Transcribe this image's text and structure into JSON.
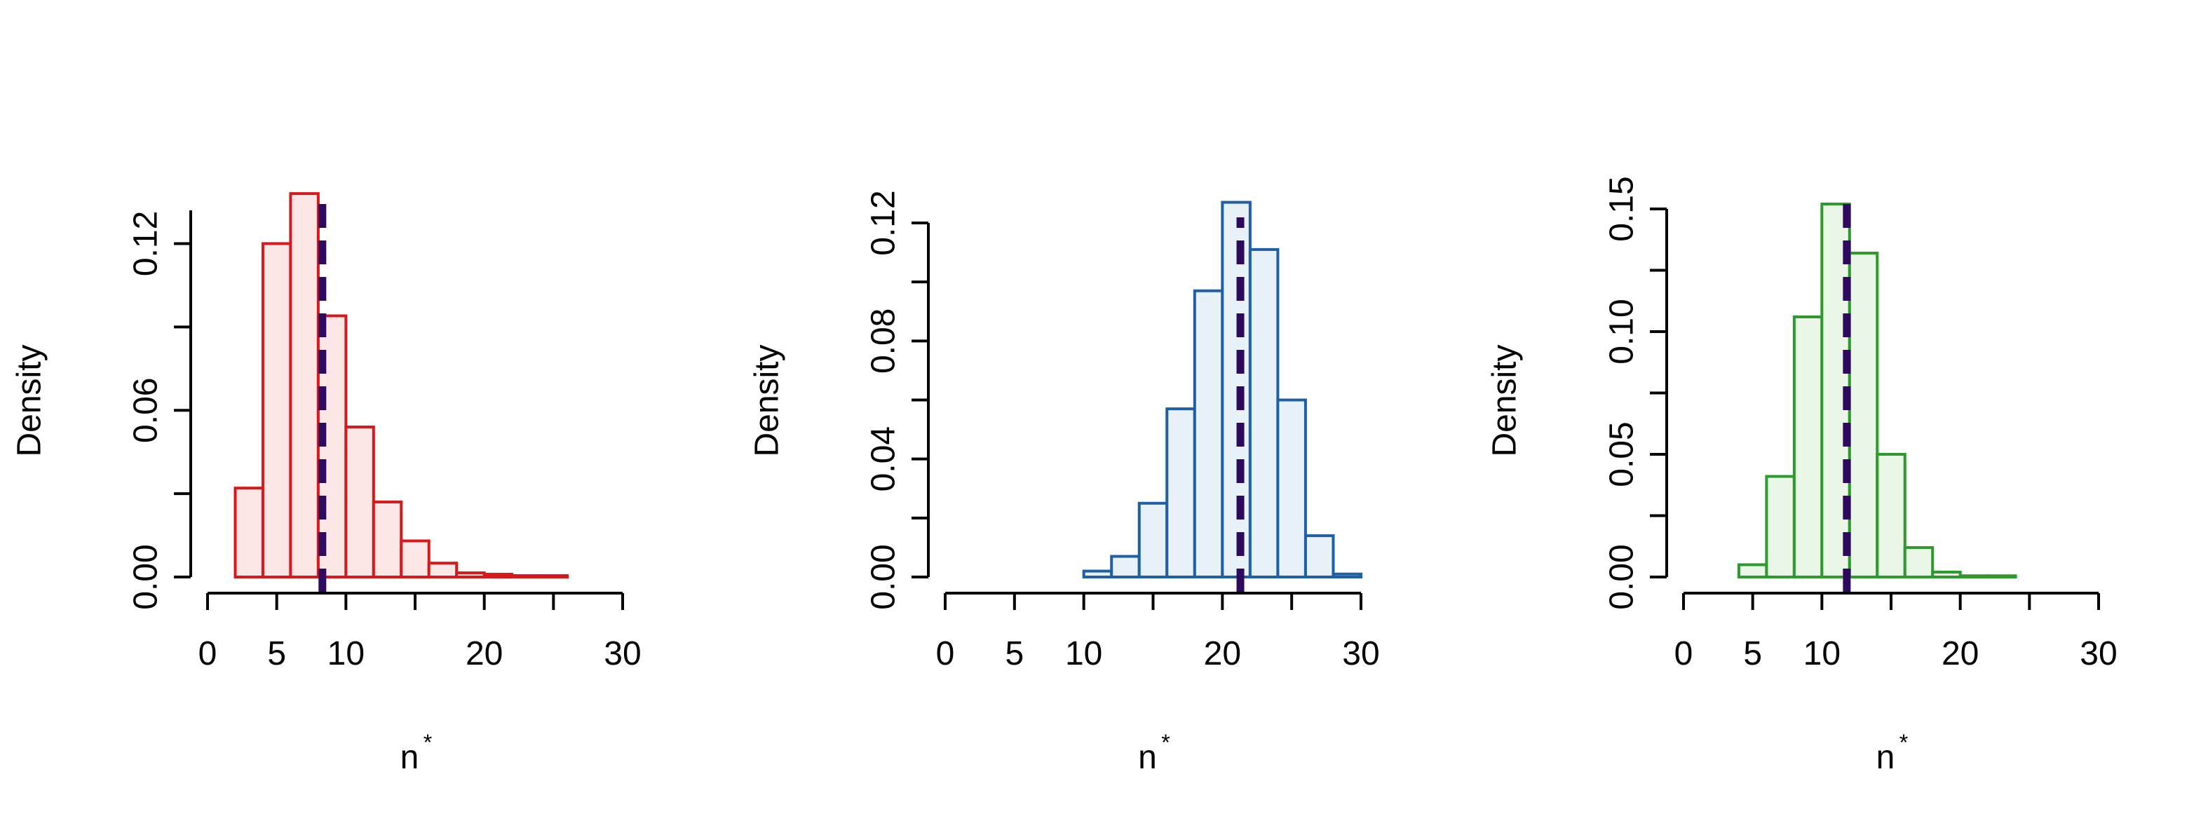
{
  "chart_data": [
    {
      "type": "bar",
      "xlabel": "n",
      "xlabel_superscript": "*",
      "ylabel": "Density",
      "xlim": [
        0,
        30
      ],
      "ylim": [
        0,
        0.135
      ],
      "xticks": [
        "0",
        "5",
        "10",
        "20",
        "30"
      ],
      "yticks": [
        "0.00",
        "0.06",
        "0.12"
      ],
      "bin_width": 2,
      "bins_start": [
        2,
        4,
        6,
        8,
        10,
        12,
        14,
        16,
        18,
        20,
        22,
        24
      ],
      "density": [
        0.032,
        0.12,
        0.138,
        0.094,
        0.054,
        0.027,
        0.013,
        0.005,
        0.0015,
        0.001,
        0.0005,
        0.0005
      ],
      "mean_line": 8.3,
      "color": "#d7191c",
      "fill": "#fde6e6",
      "line_color": "#2d0a5e"
    },
    {
      "type": "bar",
      "xlabel": "n",
      "xlabel_superscript": "*",
      "ylabel": "Density",
      "xlim": [
        0,
        30
      ],
      "ylim": [
        0,
        0.12
      ],
      "xticks": [
        "0",
        "5",
        "10",
        "20",
        "30"
      ],
      "yticks": [
        "0.00",
        "0.04",
        "0.08",
        "0.12"
      ],
      "bin_width": 2,
      "bins_start": [
        10,
        12,
        14,
        16,
        18,
        20,
        22,
        24,
        26,
        28
      ],
      "density": [
        0.002,
        0.007,
        0.025,
        0.057,
        0.097,
        0.127,
        0.111,
        0.06,
        0.014,
        0.001
      ],
      "mean_line": 21.3,
      "color": "#1f5fa6",
      "fill": "#e8f1f8",
      "line_color": "#2d0a5e"
    },
    {
      "type": "bar",
      "xlabel": "n",
      "xlabel_superscript": "*",
      "ylabel": "Density",
      "xlim": [
        0,
        30
      ],
      "ylim": [
        0,
        0.15
      ],
      "xticks": [
        "0",
        "5",
        "10",
        "20",
        "30"
      ],
      "yticks": [
        "0.00",
        "0.05",
        "0.10",
        "0.15"
      ],
      "bin_width": 2,
      "bins_start": [
        4,
        6,
        8,
        10,
        12,
        14,
        16,
        18,
        20,
        22
      ],
      "density": [
        0.005,
        0.041,
        0.106,
        0.152,
        0.132,
        0.05,
        0.012,
        0.002,
        0.0005,
        0.0005
      ],
      "mean_line": 11.8,
      "color": "#2e9a2e",
      "fill": "#eaf6e6",
      "line_color": "#2d0a5e"
    }
  ]
}
